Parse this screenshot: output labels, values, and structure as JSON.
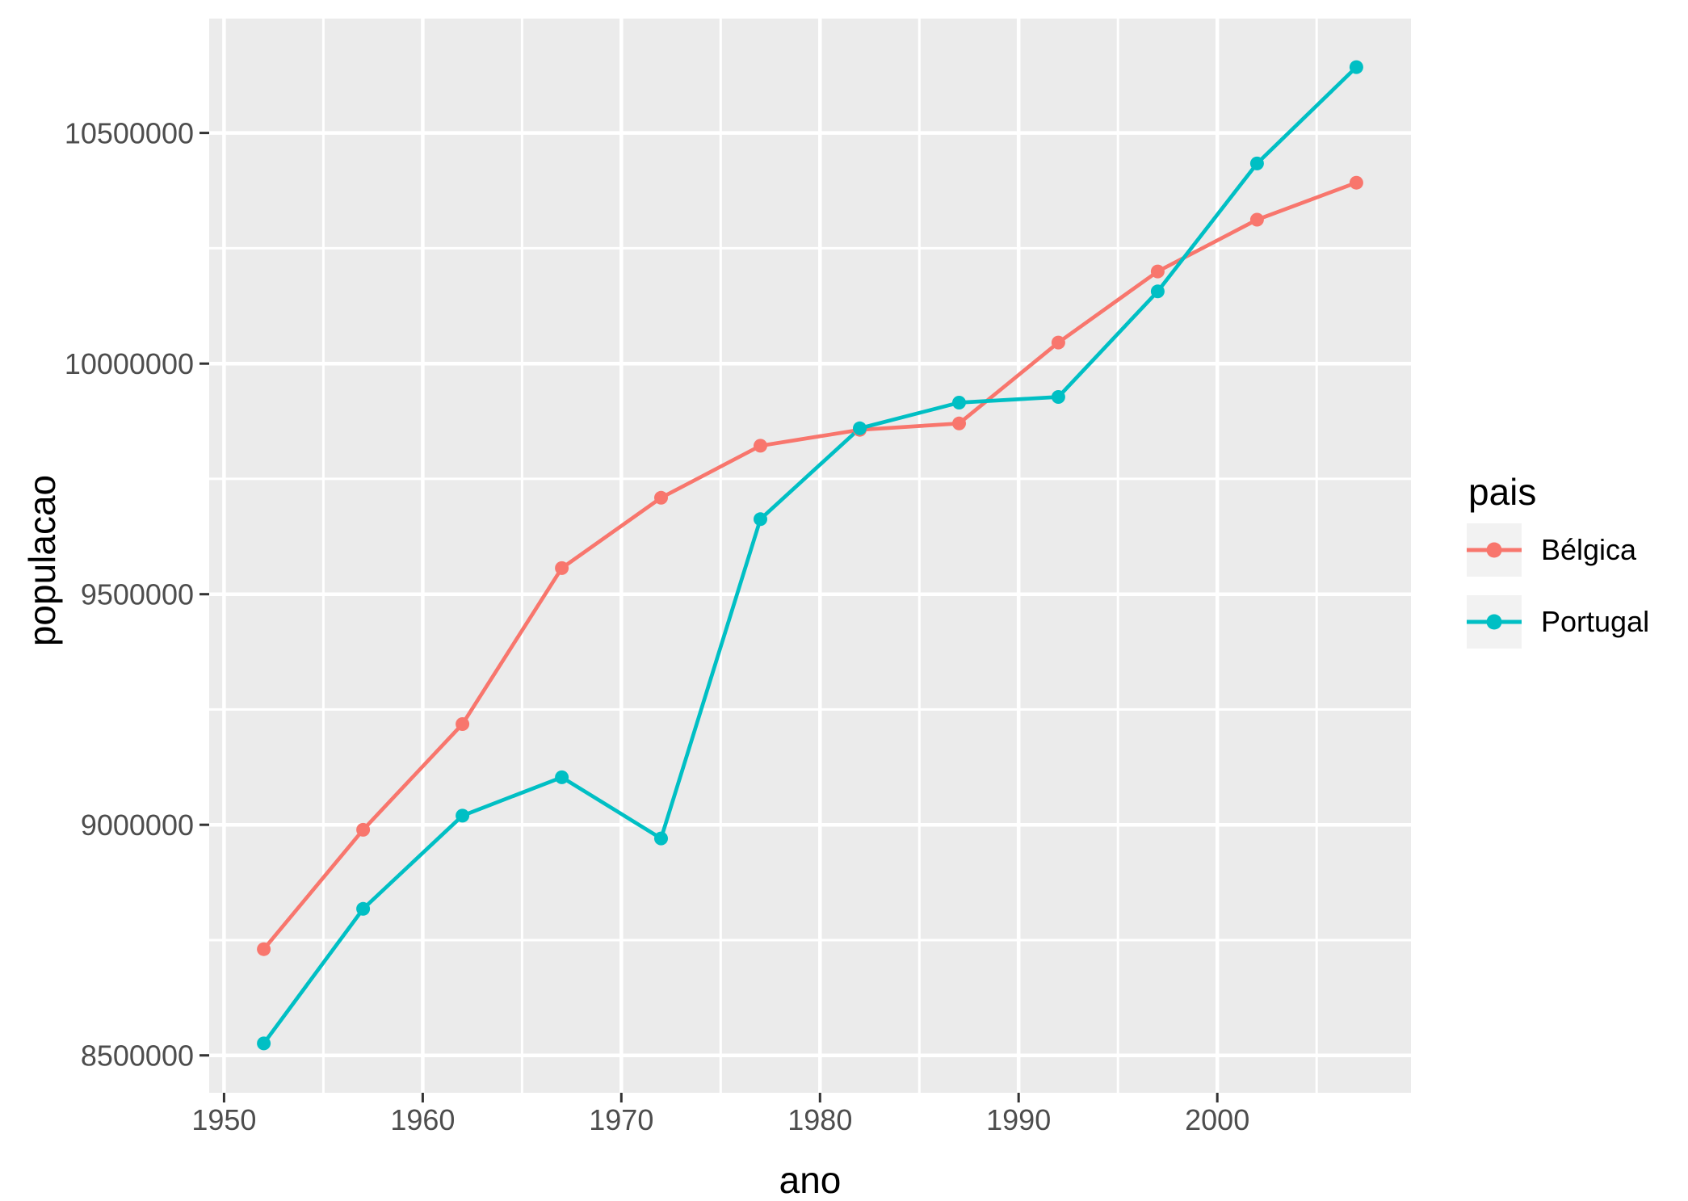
{
  "chart_data": {
    "type": "line",
    "title": "",
    "xlabel": "ano",
    "ylabel": "populacao",
    "x": [
      1952,
      1957,
      1962,
      1967,
      1972,
      1977,
      1982,
      1987,
      1992,
      1997,
      2002,
      2007
    ],
    "series": [
      {
        "name": "Bélgica",
        "color": "#F8766D",
        "values": [
          8730405,
          8989111,
          9218400,
          9556500,
          9709100,
          9821800,
          9856303,
          9870200,
          10045622,
          10199787,
          10311970,
          10392226
        ]
      },
      {
        "name": "Portugal",
        "color": "#00BFC4",
        "values": [
          8526050,
          8817650,
          9019800,
          9103000,
          8970450,
          9662600,
          9859650,
          9915289,
          9927680,
          10156415,
          10433867,
          10642836
        ]
      }
    ],
    "xlim": [
      1949.25,
      2009.75
    ],
    "ylim": [
      8419000,
      10748000
    ],
    "x_ticks": {
      "values": [
        1950,
        1960,
        1970,
        1980,
        1990,
        2000
      ],
      "labels": [
        "1950",
        "1960",
        "1970",
        "1980",
        "1990",
        "2000"
      ]
    },
    "y_ticks": {
      "values": [
        8500000,
        9000000,
        9500000,
        10000000,
        10500000
      ],
      "labels": [
        "8500000",
        "9000000",
        "9500000",
        "10000000",
        "10500000"
      ]
    },
    "x_minor": [
      1955,
      1965,
      1975,
      1985,
      1995,
      2005
    ],
    "y_minor": [
      8750000,
      9250000,
      9750000,
      10250000
    ],
    "grid": "on",
    "legend_position": "right",
    "theme": {
      "figure_background": "#FFFFFF",
      "panel_background": "#EBEBEB",
      "grid_color": "#FFFFFF",
      "tick_label_color": "#4D4D4D",
      "tick_mark_color": "#333333",
      "axis_title_color": "#000000",
      "legend_key_background": "#F2F2F2"
    }
  },
  "legend": {
    "title": "pais",
    "entries": [
      {
        "label": "Bélgica",
        "color": "#F8766D"
      },
      {
        "label": "Portugal",
        "color": "#00BFC4"
      }
    ]
  }
}
